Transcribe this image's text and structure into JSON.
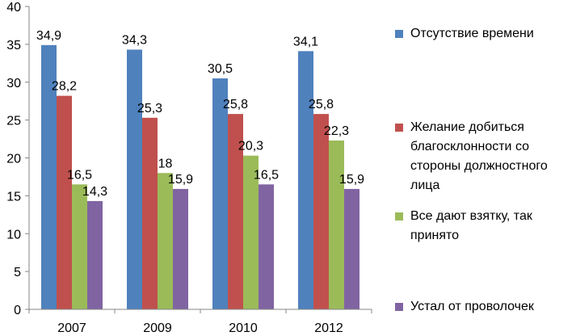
{
  "chart_data": {
    "type": "bar",
    "title": "",
    "xlabel": "",
    "ylabel": "",
    "categories": [
      "2007",
      "2009",
      "2010",
      "2012"
    ],
    "ylim": [
      0,
      40
    ],
    "yticks": [
      0,
      5,
      10,
      15,
      20,
      25,
      30,
      35,
      40
    ],
    "grid": false,
    "legend_position": "right",
    "series": [
      {
        "name": "Отсутствие времени",
        "color": "#4f81bd",
        "values": [
          34.9,
          34.3,
          30.5,
          34.1
        ],
        "labels": [
          "34,9",
          "34,3",
          "30,5",
          "34,1"
        ]
      },
      {
        "name": "Желание добиться благосклонности со стороны должностного лица",
        "color": "#c0504d",
        "values": [
          28.2,
          25.3,
          25.8,
          25.8
        ],
        "labels": [
          "28,2",
          "25,3",
          "25,8",
          "25,8"
        ]
      },
      {
        "name": "Все дают взятку, так принято",
        "color": "#9bbb59",
        "values": [
          16.5,
          18,
          20.3,
          22.3
        ],
        "labels": [
          "16,5",
          "18",
          "20,3",
          "22,3"
        ]
      },
      {
        "name": "Устал от проволочек",
        "color": "#8064a2",
        "values": [
          14.3,
          15.9,
          16.5,
          15.9
        ],
        "labels": [
          "14,3",
          "15,9",
          "16,5",
          "15,9"
        ]
      }
    ]
  }
}
